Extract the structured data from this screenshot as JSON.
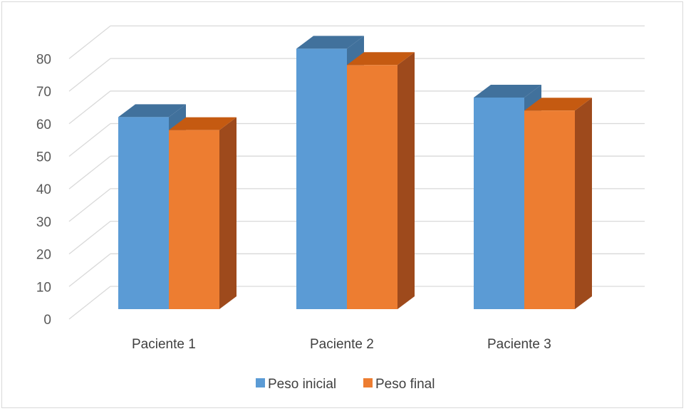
{
  "chart_data": {
    "type": "bar",
    "style": "3d-clustered-column",
    "categories": [
      "Paciente 1",
      "Paciente 2",
      "Paciente 3"
    ],
    "series": [
      {
        "name": "Peso inicial",
        "values": [
          59,
          80,
          65
        ],
        "color": "#5b9bd5",
        "top_color": "#41719c",
        "side_color": "#41719c"
      },
      {
        "name": "Peso final",
        "values": [
          55,
          75,
          61
        ],
        "color": "#ed7d31",
        "top_color": "#c55a11",
        "side_color": "#9e4a1c"
      }
    ],
    "ylim": [
      0,
      80
    ],
    "yticks": [
      0,
      10,
      20,
      30,
      40,
      50,
      60,
      70,
      80
    ],
    "grid": true,
    "legend": "bottom-center",
    "gridline_color": "#d9d9d9"
  }
}
